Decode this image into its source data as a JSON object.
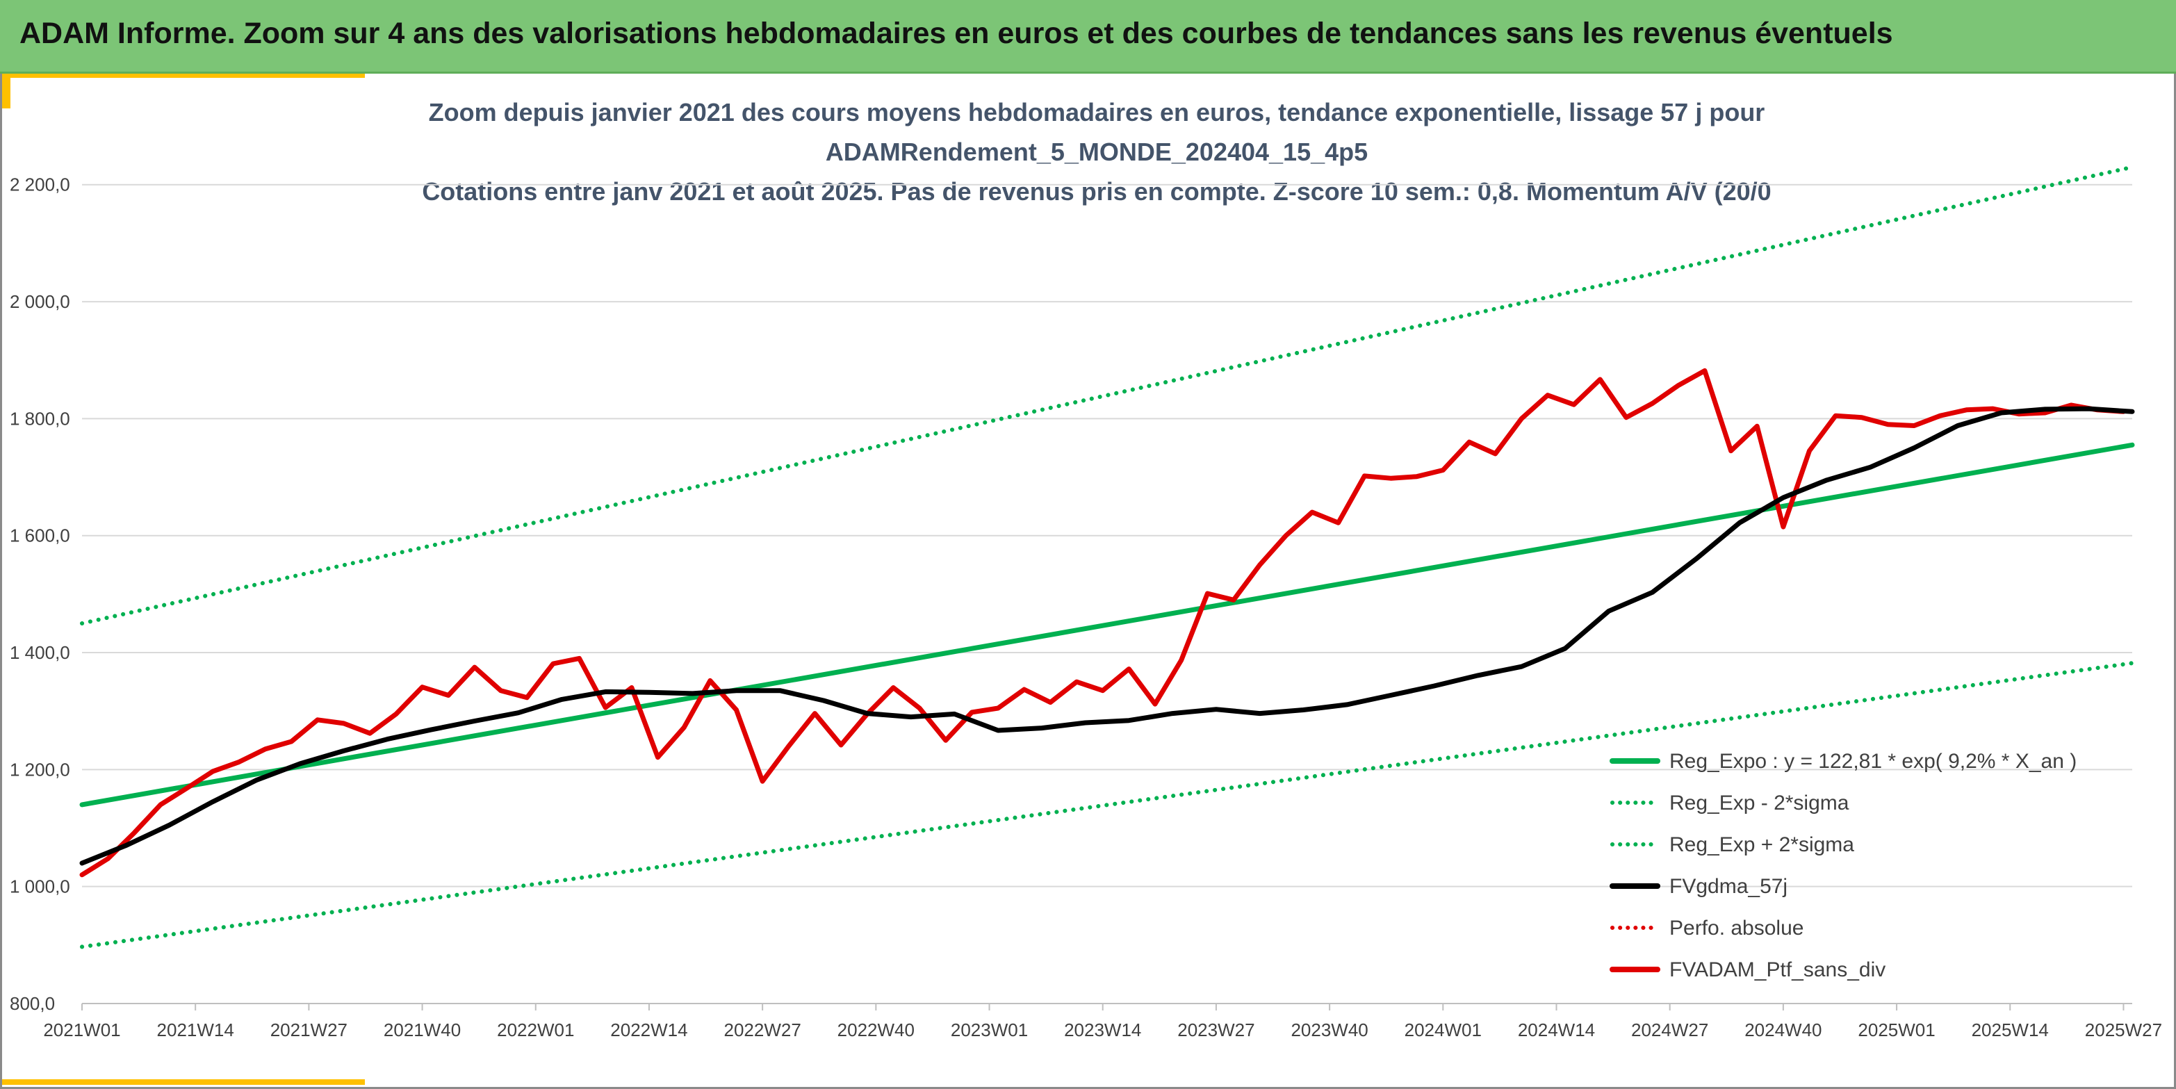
{
  "banner": {
    "title": "ADAM Informe. Zoom sur 4 ans des valorisations hebdomadaires en euros et des courbes de tendances sans les revenus éventuels"
  },
  "colors": {
    "banner": "#7cc576",
    "accent_yellow": "#ffc000",
    "trend_green": "#00b050",
    "price_red": "#e00000",
    "moving_average": "#000000"
  },
  "chart_data": {
    "type": "line",
    "title": [
      "Zoom depuis janvier 2021 des cours moyens hebdomadaires en euros, tendance exponentielle, lissage 57 j pour",
      "ADAMRendement_5_MONDE_202404_15_4p5",
      "Cotations entre janv 2021 et août 2025. Pas de revenus pris en compte. Z-score 10 sem.: 0,8. Momentum A/V (20/0"
    ],
    "x_tick_labels": [
      "2021W01",
      "2021W14",
      "2021W27",
      "2021W40",
      "2022W01",
      "2022W14",
      "2022W27",
      "2022W40",
      "2023W01",
      "2023W14",
      "2023W27",
      "2023W40",
      "2024W01",
      "2024W14",
      "2024W27",
      "2024W40",
      "2025W01",
      "2025W14",
      "2025W27"
    ],
    "x_unit": "weeks since 2021W01",
    "x_range": [
      0,
      235
    ],
    "y_tick_labels": [
      "800,0",
      "1 000,0",
      "1 200,0",
      "1 400,0",
      "1 600,0",
      "1 800,0",
      "2 000,0",
      "2 200,0"
    ],
    "ylim": [
      800,
      2290
    ],
    "legend_position": "bottom-right",
    "grid": "horizontal",
    "series": [
      {
        "name": "Reg_Expo : y = 122,81 * exp( 9,2% *  X_an )",
        "style": "solid",
        "color": "#00b050",
        "x": [
          0,
          235
        ],
        "values": [
          1140,
          1755
        ]
      },
      {
        "name": "Reg_Exp - 2*sigma",
        "style": "dotted",
        "color": "#00b050",
        "x": [
          0,
          235
        ],
        "values": [
          897,
          1382
        ]
      },
      {
        "name": "Reg_Exp + 2*sigma",
        "style": "dotted",
        "color": "#00b050",
        "x": [
          0,
          235
        ],
        "values": [
          1450,
          2230
        ]
      },
      {
        "name": "FVgdma_57j",
        "style": "solid",
        "color": "#000000",
        "x": [
          0,
          5,
          10,
          15,
          20,
          25,
          30,
          35,
          40,
          45,
          50,
          55,
          60,
          65,
          70,
          75,
          80,
          85,
          90,
          95,
          100,
          105,
          110,
          115,
          120,
          125,
          130,
          135,
          140,
          145,
          150,
          155,
          160,
          165,
          170,
          175,
          180,
          185,
          190,
          195,
          200,
          205,
          210,
          215,
          220,
          225,
          230,
          235
        ],
        "values": [
          1040,
          1070,
          1105,
          1145,
          1182,
          1210,
          1232,
          1252,
          1268,
          1283,
          1297,
          1320,
          1333,
          1332,
          1330,
          1335,
          1335,
          1318,
          1296,
          1290,
          1295,
          1267,
          1271,
          1280,
          1284,
          1296,
          1303,
          1296,
          1302,
          1311,
          1327,
          1343,
          1361,
          1376,
          1407,
          1471,
          1503,
          1560,
          1622,
          1665,
          1695,
          1717,
          1750,
          1788,
          1810,
          1816,
          1817,
          1812
        ]
      },
      {
        "name": "Perfo. absolue",
        "style": "dotted",
        "color": "#e00000",
        "x": [],
        "values": []
      },
      {
        "name": "FVADAM_Ptf_sans_div",
        "style": "solid",
        "color": "#e00000",
        "x": [
          0,
          3,
          6,
          9,
          12,
          15,
          18,
          21,
          24,
          27,
          30,
          33,
          36,
          39,
          42,
          45,
          48,
          51,
          54,
          57,
          60,
          63,
          66,
          69,
          72,
          75,
          78,
          81,
          84,
          87,
          90,
          93,
          96,
          99,
          102,
          105,
          108,
          111,
          114,
          117,
          120,
          123,
          126,
          129,
          132,
          135,
          138,
          141,
          144,
          147,
          150,
          153,
          156,
          159,
          162,
          165,
          168,
          171,
          174,
          177,
          180,
          183,
          186,
          189,
          192,
          195,
          198,
          201,
          204,
          207,
          210,
          213,
          216,
          219,
          222,
          225,
          228,
          231,
          234
        ],
        "values": [
          1020,
          1048,
          1092,
          1140,
          1168,
          1197,
          1213,
          1235,
          1248,
          1285,
          1279,
          1262,
          1295,
          1341,
          1327,
          1375,
          1335,
          1323,
          1381,
          1390,
          1306,
          1340,
          1221,
          1272,
          1352,
          1302,
          1180,
          1240,
          1296,
          1242,
          1295,
          1340,
          1305,
          1250,
          1298,
          1305,
          1337,
          1315,
          1350,
          1335,
          1372,
          1312,
          1387,
          1501,
          1490,
          1550,
          1600,
          1640,
          1622,
          1702,
          1698,
          1701,
          1712,
          1760,
          1740,
          1800,
          1840,
          1824,
          1867,
          1802,
          1826,
          1857,
          1882,
          1745,
          1787,
          1615,
          1745,
          1805,
          1802,
          1790,
          1788,
          1805,
          1815,
          1817,
          1808,
          1810,
          1823,
          1815,
          1812
        ]
      }
    ]
  }
}
